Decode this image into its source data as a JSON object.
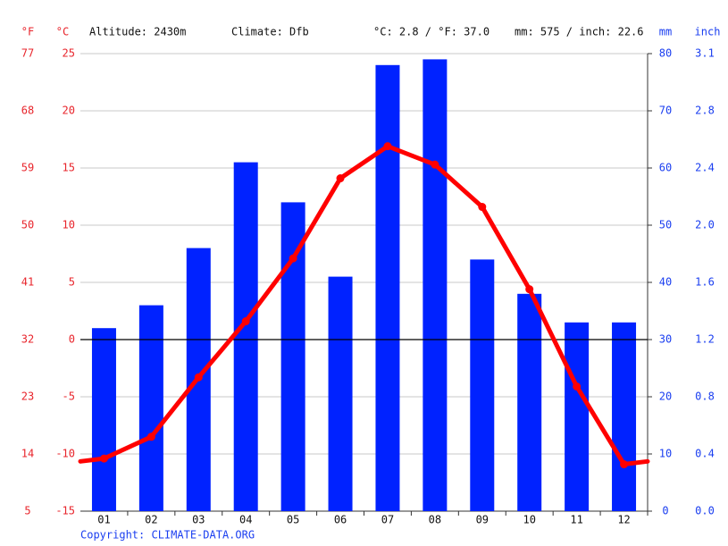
{
  "chart_data": {
    "type": "climate",
    "header": {
      "f_unit": "°F",
      "c_unit": "°C",
      "altitude": "Altitude: 2430m",
      "climate": "Climate: Dfb",
      "temp_summary": "°C: 2.8 / °F: 37.0",
      "precip_summary": "mm: 575 / inch: 22.6",
      "mm_unit": "mm",
      "inch_unit": "inch"
    },
    "copyright": "Copyright: CLIMATE-DATA.ORG",
    "categories": [
      "01",
      "02",
      "03",
      "04",
      "05",
      "06",
      "07",
      "08",
      "09",
      "10",
      "11",
      "12"
    ],
    "series": [
      {
        "type": "bar",
        "axis": "y2",
        "color": "#0022ff",
        "values": [
          32,
          36,
          46,
          61,
          54,
          41,
          78,
          79,
          44,
          38,
          33,
          33
        ]
      },
      {
        "type": "line",
        "axis": "y",
        "color": "#ff0000",
        "values": [
          -10.4,
          -8.5,
          -3.3,
          1.6,
          7.1,
          14.1,
          16.9,
          15.3,
          11.6,
          4.4,
          -4.1,
          -10.9
        ]
      }
    ],
    "ylim": [
      -15,
      25
    ],
    "yticks": [
      -15,
      -10,
      -5,
      0,
      5,
      10,
      15,
      20,
      25
    ],
    "fticks": [
      {
        "value": -15,
        "label": "5"
      },
      {
        "value": -10,
        "label": "14"
      },
      {
        "value": -5,
        "label": "23"
      },
      {
        "value": 0,
        "label": "32"
      },
      {
        "value": 5,
        "label": "41"
      },
      {
        "value": 10,
        "label": "50"
      },
      {
        "value": 15,
        "label": "59"
      },
      {
        "value": 20,
        "label": "68"
      },
      {
        "value": 25,
        "label": "77"
      }
    ],
    "y2lim": [
      0,
      80
    ],
    "y2ticks": [
      0,
      10,
      20,
      30,
      40,
      50,
      60,
      70,
      80
    ],
    "inchticks": [
      {
        "value": 0,
        "label": "0.0"
      },
      {
        "value": 10,
        "label": "0.4"
      },
      {
        "value": 20,
        "label": "0.8"
      },
      {
        "value": 30,
        "label": "1.2"
      },
      {
        "value": 40,
        "label": "1.6"
      },
      {
        "value": 50,
        "label": "2.0"
      },
      {
        "value": 60,
        "label": "2.4"
      },
      {
        "value": 70,
        "label": "2.8"
      },
      {
        "value": 80,
        "label": "3.1"
      }
    ],
    "grid": true
  }
}
